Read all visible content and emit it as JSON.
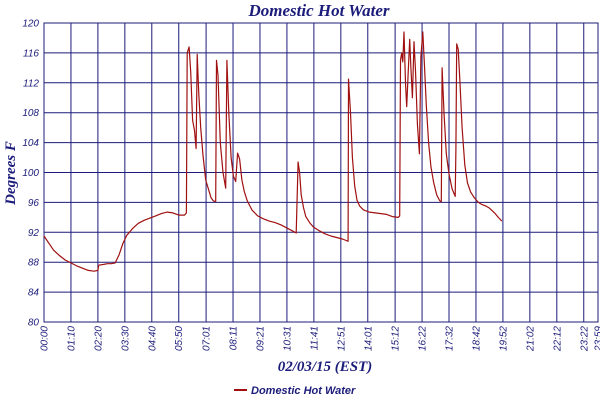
{
  "chart_data": {
    "type": "line",
    "title": "Domestic Hot Water",
    "xlabel": "02/03/15 (EST)",
    "ylabel": "Degrees F",
    "ylim": [
      80,
      120
    ],
    "yticks": [
      80,
      84,
      88,
      92,
      96,
      100,
      104,
      108,
      112,
      116,
      120
    ],
    "xlim_minutes": [
      0,
      1439
    ],
    "xtick_labels": [
      "00:00",
      "01:10",
      "02:20",
      "03:30",
      "04:40",
      "05:50",
      "07:01",
      "08:11",
      "09:21",
      "10:31",
      "11:41",
      "12:51",
      "14:01",
      "15:12",
      "16:22",
      "17:32",
      "18:42",
      "19:52",
      "21:02",
      "22:12",
      "23:22",
      "23:59"
    ],
    "xtick_minutes": [
      0,
      70,
      140,
      210,
      280,
      350,
      421,
      491,
      561,
      631,
      701,
      771,
      841,
      912,
      982,
      1052,
      1122,
      1192,
      1262,
      1332,
      1402,
      1439
    ],
    "grid": true,
    "legend_position": "bottom-center",
    "series": [
      {
        "name": "Domestic Hot Water",
        "color": "#a01010",
        "points": [
          [
            0,
            91.5
          ],
          [
            12,
            90.6
          ],
          [
            25,
            89.6
          ],
          [
            40,
            88.9
          ],
          [
            55,
            88.3
          ],
          [
            70,
            87.9
          ],
          [
            85,
            87.5
          ],
          [
            100,
            87.2
          ],
          [
            115,
            86.9
          ],
          [
            130,
            86.8
          ],
          [
            140,
            86.9
          ],
          [
            142,
            87.6
          ],
          [
            155,
            87.7
          ],
          [
            165,
            87.8
          ],
          [
            175,
            87.8
          ],
          [
            185,
            87.9
          ],
          [
            195,
            89.0
          ],
          [
            205,
            90.5
          ],
          [
            215,
            91.6
          ],
          [
            230,
            92.5
          ],
          [
            245,
            93.2
          ],
          [
            260,
            93.6
          ],
          [
            275,
            93.9
          ],
          [
            290,
            94.2
          ],
          [
            305,
            94.5
          ],
          [
            320,
            94.7
          ],
          [
            335,
            94.6
          ],
          [
            350,
            94.3
          ],
          [
            365,
            94.3
          ],
          [
            370,
            94.6
          ],
          [
            372,
            116.0
          ],
          [
            377,
            116.8
          ],
          [
            381,
            113.5
          ],
          [
            386,
            107.0
          ],
          [
            391,
            105.6
          ],
          [
            395,
            103.2
          ],
          [
            398,
            115.8
          ],
          [
            402,
            110.5
          ],
          [
            407,
            106.0
          ],
          [
            413,
            102.3
          ],
          [
            420,
            99.0
          ],
          [
            427,
            97.8
          ],
          [
            434,
            96.6
          ],
          [
            440,
            96.2
          ],
          [
            446,
            96.1
          ],
          [
            448,
            115.0
          ],
          [
            452,
            113.0
          ],
          [
            458,
            104.0
          ],
          [
            465,
            100.0
          ],
          [
            472,
            97.9
          ],
          [
            475,
            115.0
          ],
          [
            480,
            108.0
          ],
          [
            486,
            102.0
          ],
          [
            492,
            99.5
          ],
          [
            498,
            98.8
          ],
          [
            503,
            102.6
          ],
          [
            508,
            101.8
          ],
          [
            514,
            99.0
          ],
          [
            520,
            97.5
          ],
          [
            528,
            96.2
          ],
          [
            540,
            95.0
          ],
          [
            555,
            94.2
          ],
          [
            570,
            93.8
          ],
          [
            585,
            93.5
          ],
          [
            600,
            93.3
          ],
          [
            615,
            93.0
          ],
          [
            630,
            92.6
          ],
          [
            645,
            92.2
          ],
          [
            655,
            91.9
          ],
          [
            660,
            101.4
          ],
          [
            664,
            100.0
          ],
          [
            668,
            97.0
          ],
          [
            674,
            95.3
          ],
          [
            680,
            94.1
          ],
          [
            690,
            93.3
          ],
          [
            700,
            92.7
          ],
          [
            715,
            92.2
          ],
          [
            730,
            91.8
          ],
          [
            745,
            91.5
          ],
          [
            760,
            91.3
          ],
          [
            775,
            91.1
          ],
          [
            785,
            90.9
          ],
          [
            790,
            90.8
          ],
          [
            791,
            112.5
          ],
          [
            796,
            108.0
          ],
          [
            801,
            102.0
          ],
          [
            807,
            98.2
          ],
          [
            813,
            96.3
          ],
          [
            820,
            95.5
          ],
          [
            830,
            95.0
          ],
          [
            845,
            94.7
          ],
          [
            860,
            94.6
          ],
          [
            875,
            94.5
          ],
          [
            890,
            94.4
          ],
          [
            905,
            94.1
          ],
          [
            920,
            94.0
          ],
          [
            924,
            94.2
          ],
          [
            926,
            115.0
          ],
          [
            929,
            116.0
          ],
          [
            932,
            114.8
          ],
          [
            935,
            118.8
          ],
          [
            939,
            112.0
          ],
          [
            942,
            108.8
          ],
          [
            946,
            113.4
          ],
          [
            950,
            117.8
          ],
          [
            953,
            114.0
          ],
          [
            957,
            110.0
          ],
          [
            961,
            117.5
          ],
          [
            965,
            113.6
          ],
          [
            970,
            106.5
          ],
          [
            975,
            102.5
          ],
          [
            979,
            115.5
          ],
          [
            984,
            118.8
          ],
          [
            988,
            114.5
          ],
          [
            993,
            109.0
          ],
          [
            999,
            104.0
          ],
          [
            1005,
            100.8
          ],
          [
            1012,
            98.7
          ],
          [
            1020,
            97.0
          ],
          [
            1028,
            96.2
          ],
          [
            1032,
            96.1
          ],
          [
            1034,
            114.0
          ],
          [
            1039,
            108.0
          ],
          [
            1045,
            102.5
          ],
          [
            1052,
            99.8
          ],
          [
            1060,
            97.8
          ],
          [
            1068,
            96.8
          ],
          [
            1070,
            103.0
          ],
          [
            1072,
            117.2
          ],
          [
            1076,
            116.5
          ],
          [
            1080,
            112.5
          ],
          [
            1086,
            106.0
          ],
          [
            1093,
            101.0
          ],
          [
            1100,
            98.6
          ],
          [
            1108,
            97.4
          ],
          [
            1118,
            96.6
          ],
          [
            1128,
            96.0
          ],
          [
            1138,
            95.7
          ],
          [
            1148,
            95.5
          ],
          [
            1155,
            95.3
          ],
          [
            1162,
            95.0
          ],
          [
            1172,
            94.5
          ],
          [
            1180,
            94.0
          ],
          [
            1189,
            93.5
          ]
        ]
      }
    ]
  }
}
